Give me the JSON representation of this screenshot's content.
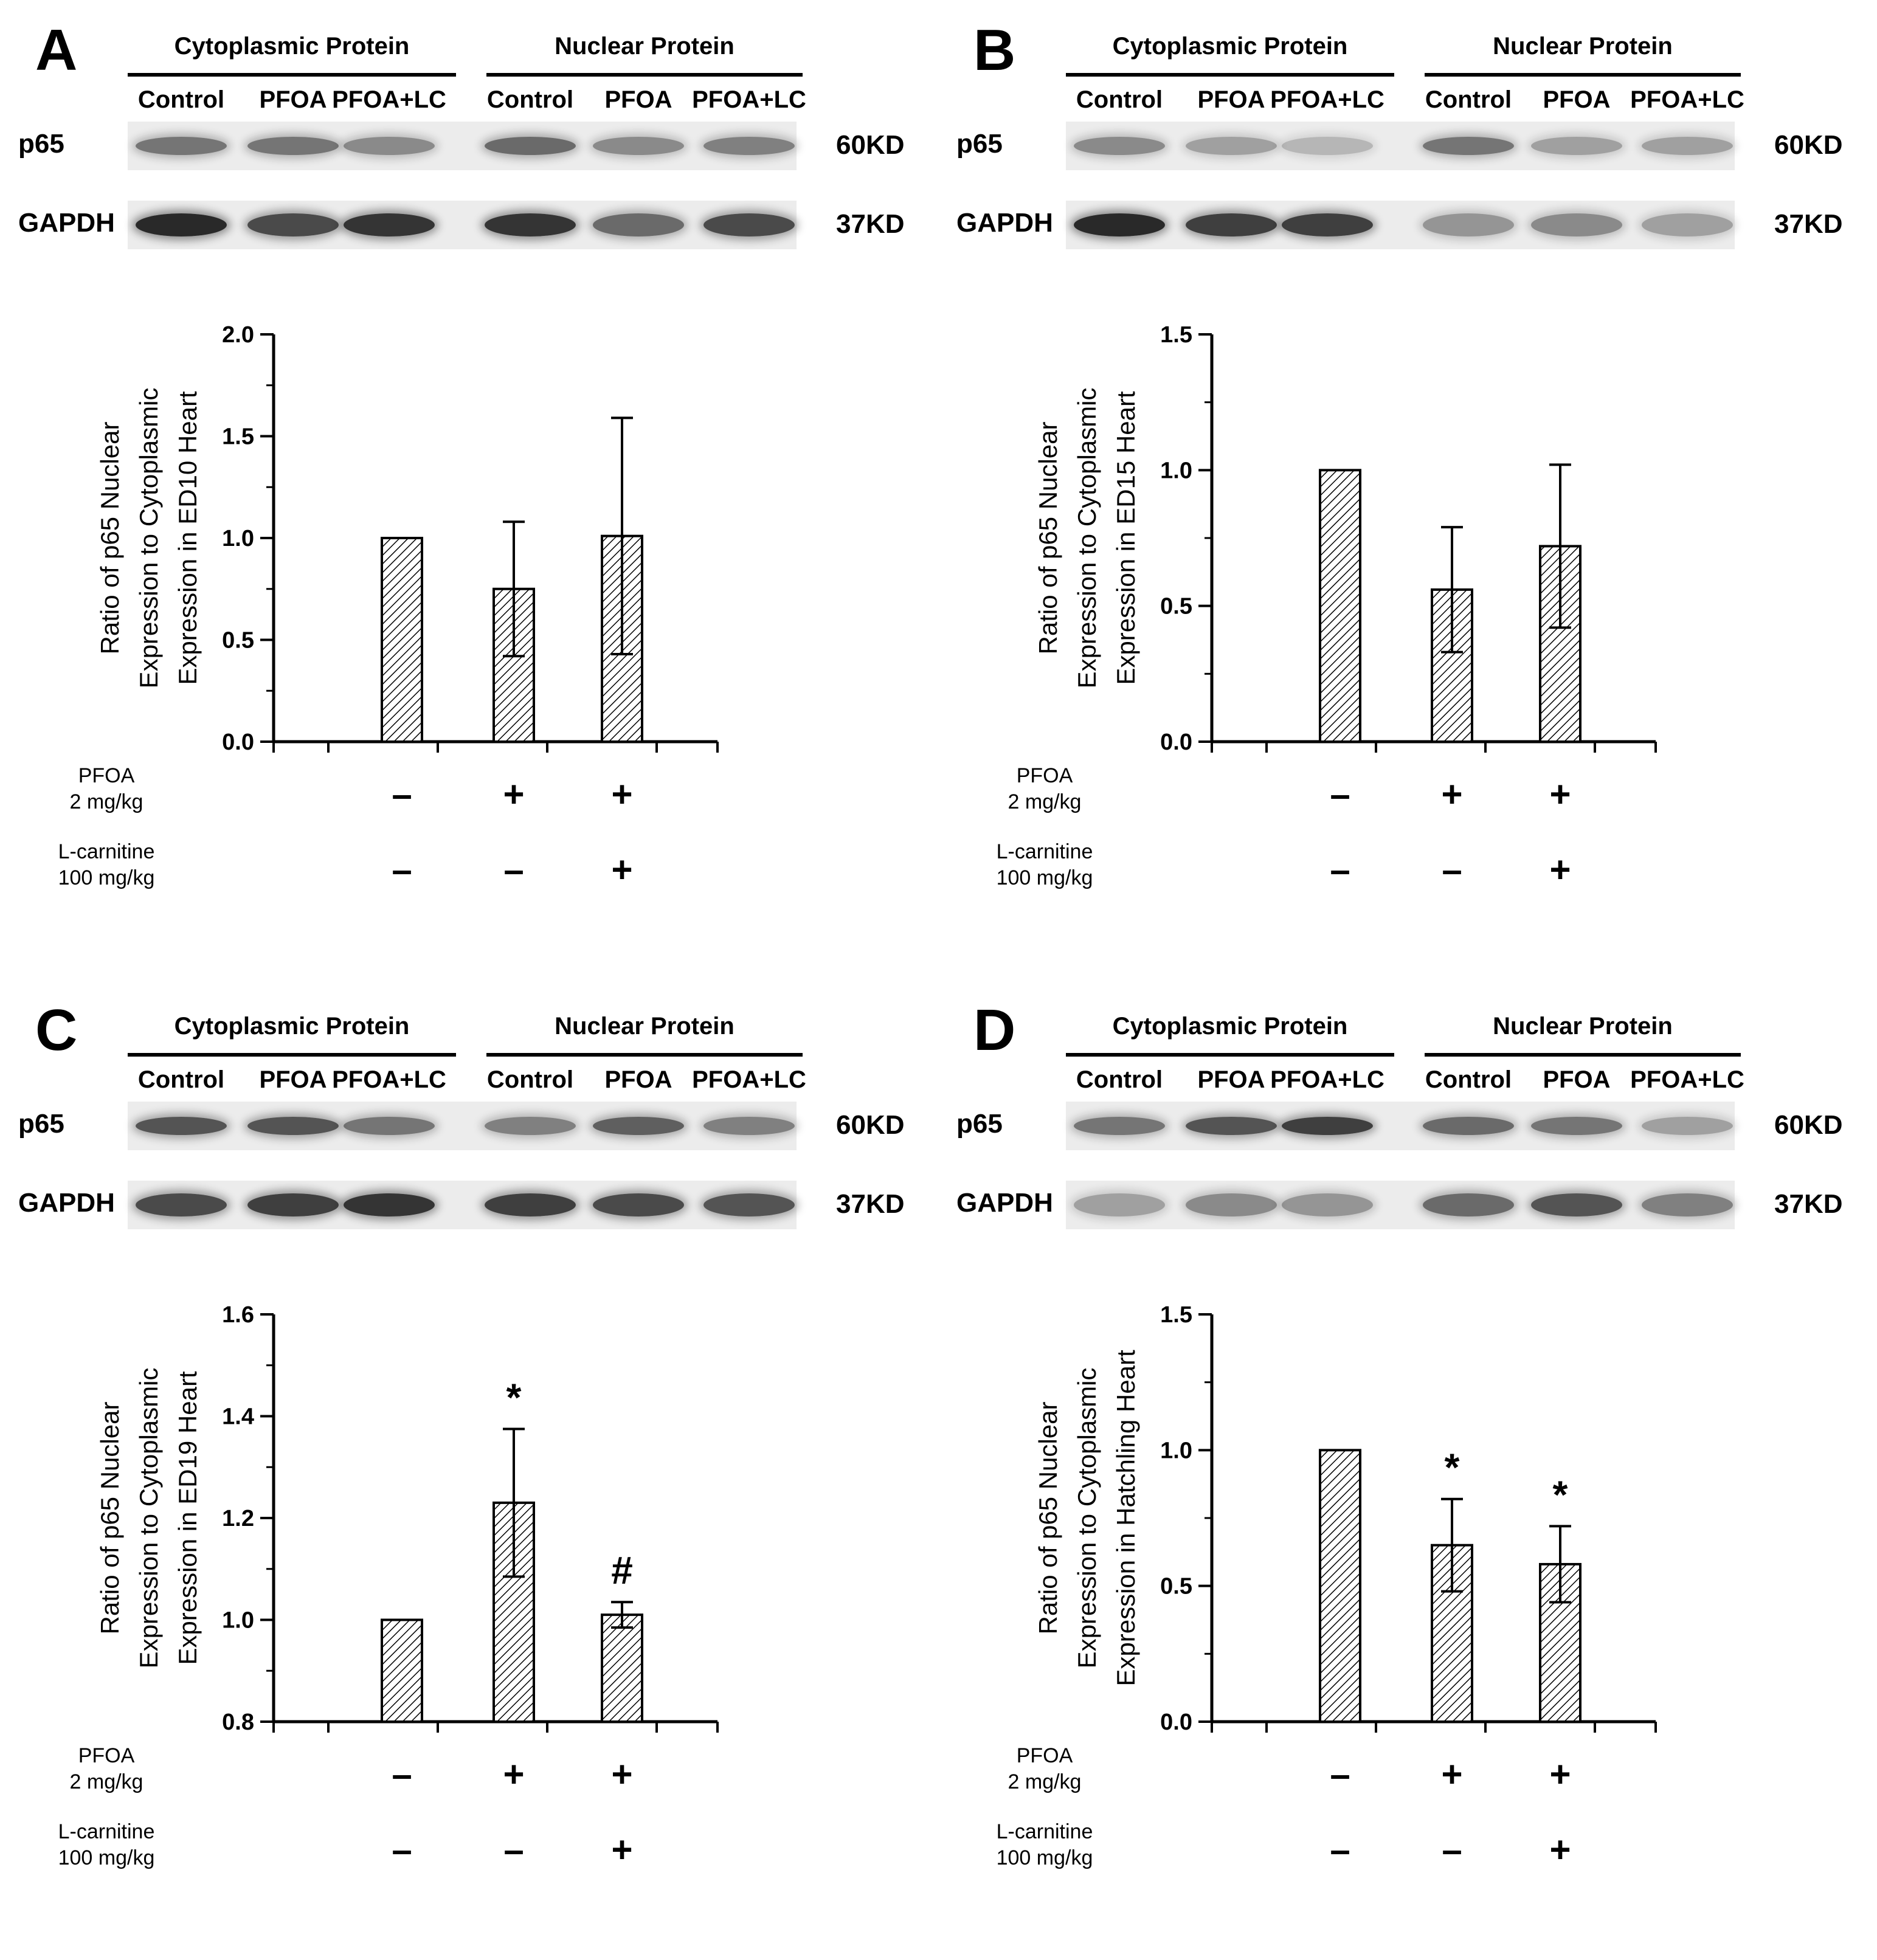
{
  "panels": [
    {
      "letter": "A",
      "blot": {
        "groups": [
          "Cytoplasmic Protein",
          "Nuclear Protein"
        ],
        "lanes": [
          "Control",
          "PFOA",
          "PFOA+LC",
          "Control",
          "PFOA",
          "PFOA+LC"
        ],
        "rows": [
          {
            "label": "p65",
            "kd": "60KD"
          },
          {
            "label": "GAPDH",
            "kd": "37KD"
          }
        ]
      },
      "treatments": [
        {
          "label": "PFOA\n2 mg/kg",
          "signs": [
            "-",
            "+",
            "+"
          ]
        },
        {
          "label": "L-carnitine\n100 mg/kg",
          "signs": [
            "-",
            "-",
            "+"
          ]
        }
      ]
    },
    {
      "letter": "B",
      "blot": {
        "groups": [
          "Cytoplasmic Protein",
          "Nuclear Protein"
        ],
        "lanes": [
          "Control",
          "PFOA",
          "PFOA+LC",
          "Control",
          "PFOA",
          "PFOA+LC"
        ],
        "rows": [
          {
            "label": "p65",
            "kd": "60KD"
          },
          {
            "label": "GAPDH",
            "kd": "37KD"
          }
        ]
      },
      "treatments": [
        {
          "label": "PFOA\n2 mg/kg",
          "signs": [
            "-",
            "+",
            "+"
          ]
        },
        {
          "label": "L-carnitine\n100 mg/kg",
          "signs": [
            "-",
            "-",
            "+"
          ]
        }
      ]
    },
    {
      "letter": "C",
      "blot": {
        "groups": [
          "Cytoplasmic Protein",
          "Nuclear Protein"
        ],
        "lanes": [
          "Control",
          "PFOA",
          "PFOA+LC",
          "Control",
          "PFOA",
          "PFOA+LC"
        ],
        "rows": [
          {
            "label": "p65",
            "kd": "60KD"
          },
          {
            "label": "GAPDH",
            "kd": "37KD"
          }
        ]
      },
      "treatments": [
        {
          "label": "PFOA\n2 mg/kg",
          "signs": [
            "-",
            "+",
            "+"
          ]
        },
        {
          "label": "L-carnitine\n100 mg/kg",
          "signs": [
            "-",
            "-",
            "+"
          ]
        }
      ]
    },
    {
      "letter": "D",
      "blot": {
        "groups": [
          "Cytoplasmic Protein",
          "Nuclear Protein"
        ],
        "lanes": [
          "Control",
          "PFOA",
          "PFOA+LC",
          "Control",
          "PFOA",
          "PFOA+LC"
        ],
        "rows": [
          {
            "label": "p65",
            "kd": "60KD"
          },
          {
            "label": "GAPDH",
            "kd": "37KD"
          }
        ]
      },
      "treatments": [
        {
          "label": "PFOA\n2 mg/kg",
          "signs": [
            "-",
            "+",
            "+"
          ]
        },
        {
          "label": "L-carnitine\n100 mg/kg",
          "signs": [
            "-",
            "-",
            "+"
          ]
        }
      ]
    }
  ],
  "chart_data": [
    {
      "type": "bar",
      "panel": "A",
      "title": "",
      "ylabel": "Ratio of p65 Nuclear\nExpression to Cytoplasmic\nExpression in ED10 Heart",
      "xlabel": "",
      "categories": [
        "Control",
        "PFOA",
        "PFOA+LC"
      ],
      "values": [
        1.0,
        0.75,
        1.01
      ],
      "errors": [
        0,
        0.33,
        0.58
      ],
      "annotations": [
        "",
        "",
        ""
      ],
      "ylim": [
        0.0,
        2.0
      ],
      "yticks": [
        "0.0",
        "0.5",
        "1.0",
        "1.5",
        "2.0"
      ],
      "ytick_values": [
        0.0,
        0.5,
        1.0,
        1.5,
        2.0
      ],
      "bar_fill": "hatched"
    },
    {
      "type": "bar",
      "panel": "B",
      "title": "",
      "ylabel": "Ratio of p65 Nuclear\nExpression to Cytoplasmic\nExpression in ED15 Heart",
      "xlabel": "",
      "categories": [
        "Control",
        "PFOA",
        "PFOA+LC"
      ],
      "values": [
        1.0,
        0.56,
        0.72
      ],
      "errors": [
        0,
        0.23,
        0.3
      ],
      "annotations": [
        "",
        "",
        ""
      ],
      "ylim": [
        0.0,
        1.5
      ],
      "yticks": [
        "0.0",
        "0.5",
        "1.0",
        "1.5"
      ],
      "ytick_values": [
        0.0,
        0.5,
        1.0,
        1.5
      ],
      "bar_fill": "hatched"
    },
    {
      "type": "bar",
      "panel": "C",
      "title": "",
      "ylabel": "Ratio of p65 Nuclear\nExpression to Cytoplasmic\nExpression in ED19 Heart",
      "xlabel": "",
      "categories": [
        "Control",
        "PFOA",
        "PFOA+LC"
      ],
      "values": [
        1.0,
        1.23,
        1.01
      ],
      "errors": [
        0,
        0.145,
        0.025
      ],
      "annotations": [
        "",
        "*",
        "#"
      ],
      "ylim": [
        0.8,
        1.6
      ],
      "yticks": [
        "0.8",
        "1.0",
        "1.2",
        "1.4",
        "1.6"
      ],
      "ytick_values": [
        0.8,
        1.0,
        1.2,
        1.4,
        1.6
      ],
      "bar_fill": "hatched"
    },
    {
      "type": "bar",
      "panel": "D",
      "title": "",
      "ylabel": "Ratio of p65 Nuclear\nExpression to Cytoplasmic\nExpression in Hatchling Heart",
      "xlabel": "",
      "categories": [
        "Control",
        "PFOA",
        "PFOA+LC"
      ],
      "values": [
        1.0,
        0.65,
        0.58
      ],
      "errors": [
        0,
        0.17,
        0.14
      ],
      "annotations": [
        "",
        "*",
        "*"
      ],
      "ylim": [
        0.0,
        1.5
      ],
      "yticks": [
        "0.0",
        "0.5",
        "1.0",
        "1.5"
      ],
      "ytick_values": [
        0.0,
        0.5,
        1.0,
        1.5
      ],
      "bar_fill": "hatched"
    }
  ]
}
